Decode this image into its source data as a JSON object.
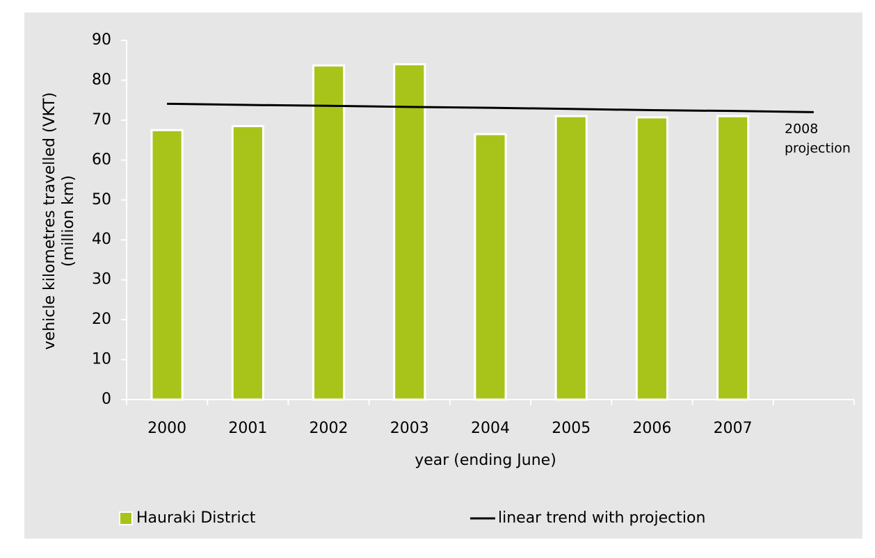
{
  "chart_data": {
    "type": "bar",
    "y_label": [
      "vehicle kilometres travelled (VKT)",
      "(million km)"
    ],
    "x_label": "year (ending June)",
    "categories": [
      "2000",
      "2001",
      "2002",
      "2003",
      "2004",
      "2005",
      "2006",
      "2007",
      null
    ],
    "series": [
      {
        "name": "Hauraki District",
        "type": "bar",
        "color": "#a8c41a",
        "values": [
          67.5,
          68.5,
          83.7,
          84,
          66.5,
          71,
          70.7,
          71,
          null
        ]
      },
      {
        "name": "linear trend with projection",
        "type": "line",
        "color": "#000000",
        "values": [
          74.1,
          73.8,
          73.6,
          73.3,
          73.1,
          72.8,
          72.5,
          72.3,
          72.0
        ]
      }
    ],
    "annotation": [
      "2008",
      "projection"
    ],
    "ylim": [
      0,
      90
    ],
    "yticks": [
      0,
      10,
      20,
      30,
      40,
      50,
      60,
      70,
      80,
      90
    ],
    "legend": "bottom"
  }
}
